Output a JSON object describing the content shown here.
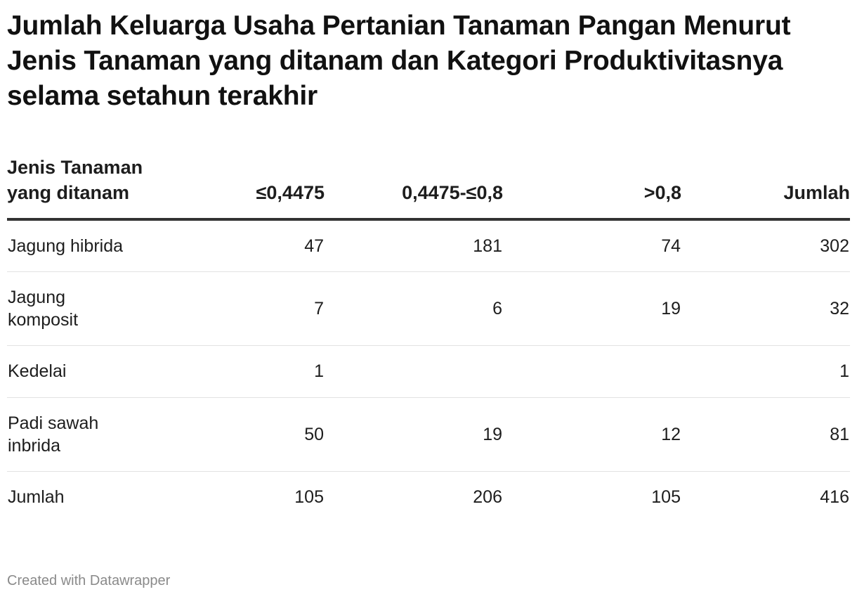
{
  "title": "Jumlah Keluarga Usaha Pertanian Tanaman Pangan Menurut Jenis Tanaman yang ditanam dan Kategori Produktivitasnya selama setahun terakhir",
  "credit": "Created with Datawrapper",
  "chart_data": {
    "type": "table",
    "title": "Jumlah Keluarga Usaha Pertanian Tanaman Pangan Menurut Jenis Tanaman yang ditanam dan Kategori Produktivitasnya selama setahun terakhir",
    "columns": [
      "Jenis Tanaman yang ditanam",
      "≤0,4475",
      "0,4475-≤0,8",
      ">0,8",
      "Jumlah"
    ],
    "rows": [
      [
        "Jagung hibrida",
        "47",
        "181",
        "74",
        "302"
      ],
      [
        "Jagung komposit",
        "7",
        "6",
        "19",
        "32"
      ],
      [
        "Kedelai",
        "1",
        "",
        "",
        "1"
      ],
      [
        "Padi sawah inbrida",
        "50",
        "19",
        "12",
        "81"
      ],
      [
        "Jumlah",
        "105",
        "206",
        "105",
        "416"
      ]
    ]
  }
}
